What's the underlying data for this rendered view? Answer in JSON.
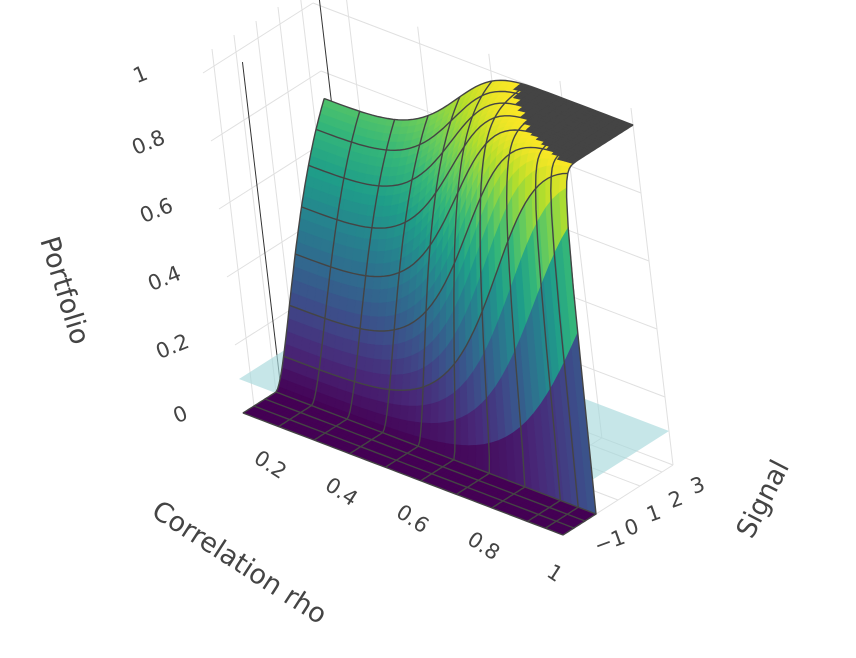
{
  "chart_data": {
    "type": "surface",
    "title": "",
    "x_axis": {
      "label": "Correlation rho",
      "ticks": [
        "0.2",
        "0.4",
        "0.6",
        "0.8",
        "1"
      ],
      "range": [
        0.1,
        1
      ]
    },
    "y_axis": {
      "label": "Signal",
      "ticks": [
        "−1",
        "0",
        "1",
        "2",
        "3"
      ],
      "range": [
        -1.5,
        3.5
      ]
    },
    "z_axis": {
      "label": "Portfolio",
      "ticks": [
        "0",
        "0.2",
        "0.4",
        "0.6",
        "0.8",
        "1"
      ],
      "range": [
        0,
        1
      ]
    },
    "colorscale": "viridis",
    "colors": {
      "plane": "#a8d8dc",
      "cap": "#444444",
      "wire": "#444444",
      "grid": "#e0e0e0"
    },
    "surfaces": [
      {
        "kind": "function",
        "description_formula": "z = min(1, max(0, signal*(1-rho)/... ))",
        "rho_values": [
          0.1,
          0.2,
          0.3,
          0.4,
          0.5,
          0.6,
          0.7,
          0.8,
          0.9,
          0.95,
          1.0
        ],
        "signal_values": [
          -1.5,
          -1,
          -0.5,
          0,
          0.5,
          1,
          1.5,
          2,
          2.5,
          3,
          3.5
        ]
      },
      {
        "kind": "plane",
        "z": 0.1
      }
    ],
    "grid": true,
    "legend": "none"
  }
}
